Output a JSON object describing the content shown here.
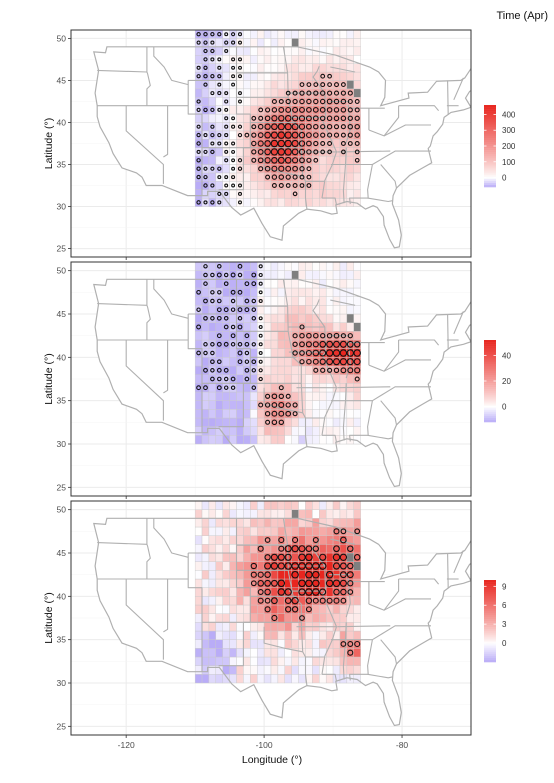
{
  "header": {
    "label": "Time (Apr)"
  },
  "colors": {
    "positive": "#e8261f",
    "zero": "#ffffff",
    "negative": "#b9acf7",
    "missing": "#7f7f7f",
    "state_line": "#b0b0b0",
    "grid": "#ebebeb"
  },
  "chart_data": [
    {
      "type": "heatmap",
      "panel": 1,
      "xlabel": "",
      "ylabel": "Latitude (°)",
      "xlim": [
        -128,
        -70
      ],
      "ylim": [
        24,
        51
      ],
      "x_ticks": [
        "-120",
        "-100",
        "-80"
      ],
      "y_ticks": [
        "25",
        "30",
        "35",
        "40",
        "45",
        "50"
      ],
      "legend_ticks": [
        "400",
        "300",
        "200",
        "100",
        "0"
      ],
      "color_range": [
        -60,
        460
      ],
      "grid": true
    },
    {
      "type": "heatmap",
      "panel": 2,
      "xlabel": "",
      "ylabel": "Latitude (°)",
      "xlim": [
        -128,
        -70
      ],
      "ylim": [
        24,
        51
      ],
      "x_ticks": [
        "-120",
        "-100",
        "-80"
      ],
      "y_ticks": [
        "25",
        "30",
        "35",
        "40",
        "45",
        "50"
      ],
      "legend_ticks": [
        "40",
        "20",
        "0"
      ],
      "color_range": [
        -12,
        52
      ],
      "grid": true
    },
    {
      "type": "heatmap",
      "panel": 3,
      "xlabel": "Longitude (°)",
      "ylabel": "Latitude (°)",
      "xlim": [
        -128,
        -70
      ],
      "ylim": [
        24,
        51
      ],
      "x_ticks": [
        "-120",
        "-100",
        "-80"
      ],
      "y_ticks": [
        "25",
        "30",
        "35",
        "40",
        "45",
        "50"
      ],
      "legend_ticks": [
        "9",
        "6",
        "3",
        "0"
      ],
      "color_range": [
        -3,
        10
      ],
      "grid": true
    }
  ]
}
